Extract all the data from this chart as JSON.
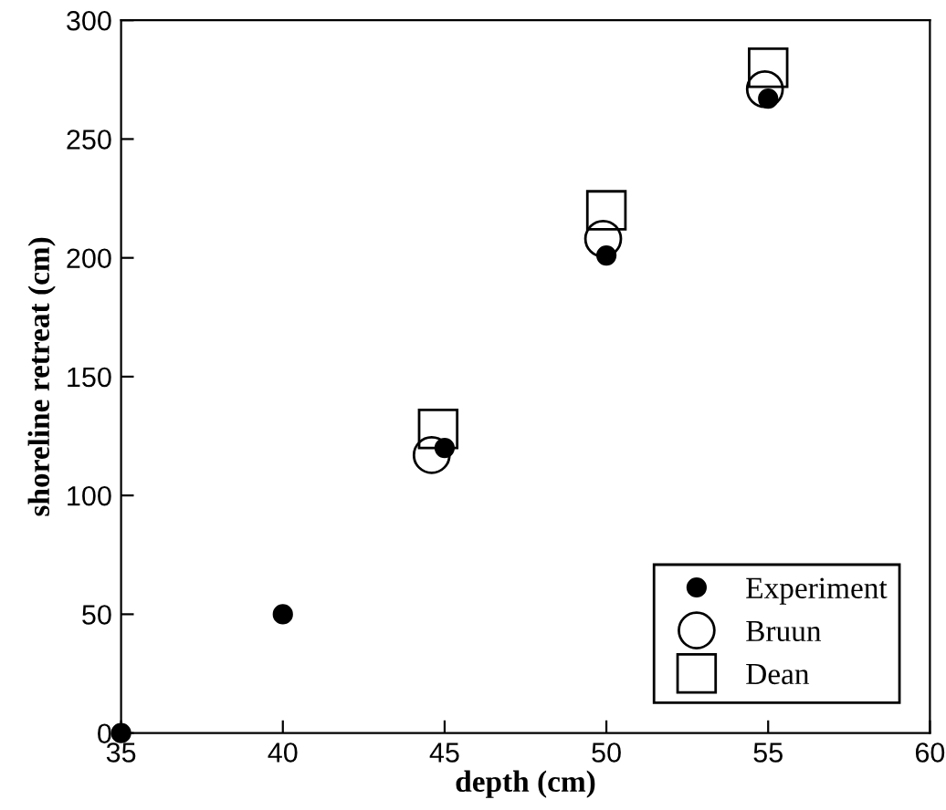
{
  "chart_data": {
    "type": "scatter",
    "xlabel": "depth (cm)",
    "ylabel": "shoreline retreat (cm)",
    "xlim": [
      35,
      60
    ],
    "xticks": [
      35,
      40,
      45,
      50,
      55,
      60
    ],
    "ylim": [
      0,
      300
    ],
    "yticks": [
      0,
      50,
      100,
      150,
      200,
      250,
      300
    ],
    "grid": false,
    "legend": "bottom right",
    "series": [
      {
        "name": "Experiment",
        "color": "#000000",
        "marker": "circle",
        "x": [
          35,
          40,
          45,
          50,
          55
        ],
        "values": [
          0,
          50,
          120,
          201,
          267
        ]
      },
      {
        "name": "Bruun",
        "color": "#000000",
        "marker": "circle",
        "x": [
          44.6,
          49.9,
          54.9
        ],
        "values": [
          117,
          208,
          271
        ]
      },
      {
        "name": "Dean",
        "color": "#000000",
        "marker": "square",
        "x": [
          44.8,
          50,
          55
        ],
        "values": [
          128,
          220,
          280
        ]
      }
    ]
  }
}
